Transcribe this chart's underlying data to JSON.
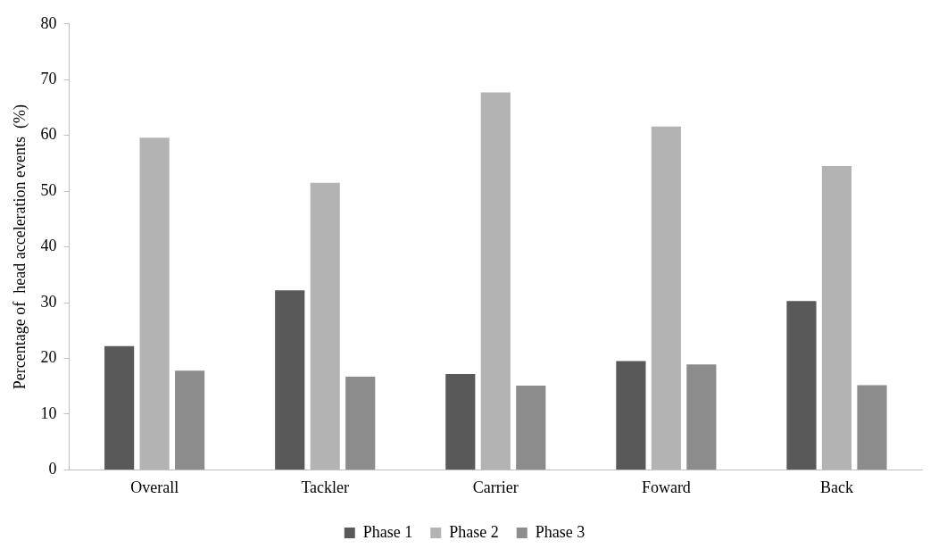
{
  "chart_data": {
    "type": "bar",
    "ylabel": "Percentage of  head acceleration events  (%)",
    "categories": [
      "Overall",
      "Tackler",
      "Carrier",
      "Foward",
      "Back"
    ],
    "series": [
      {
        "name": "Phase 1",
        "color": "#595959",
        "values": [
          22.2,
          32.2,
          17.2,
          19.5,
          30.3
        ]
      },
      {
        "name": "Phase 2",
        "color": "#b3b3b3",
        "values": [
          59.6,
          51.5,
          67.7,
          61.6,
          54.5
        ]
      },
      {
        "name": "Phase 3",
        "color": "#8c8c8c",
        "values": [
          17.8,
          16.7,
          15.1,
          18.9,
          15.2
        ]
      }
    ],
    "ylim": [
      0,
      80
    ],
    "yticks": [
      0,
      10,
      20,
      30,
      40,
      50,
      60,
      70,
      80
    ],
    "grid": false,
    "legend": "bottom"
  }
}
